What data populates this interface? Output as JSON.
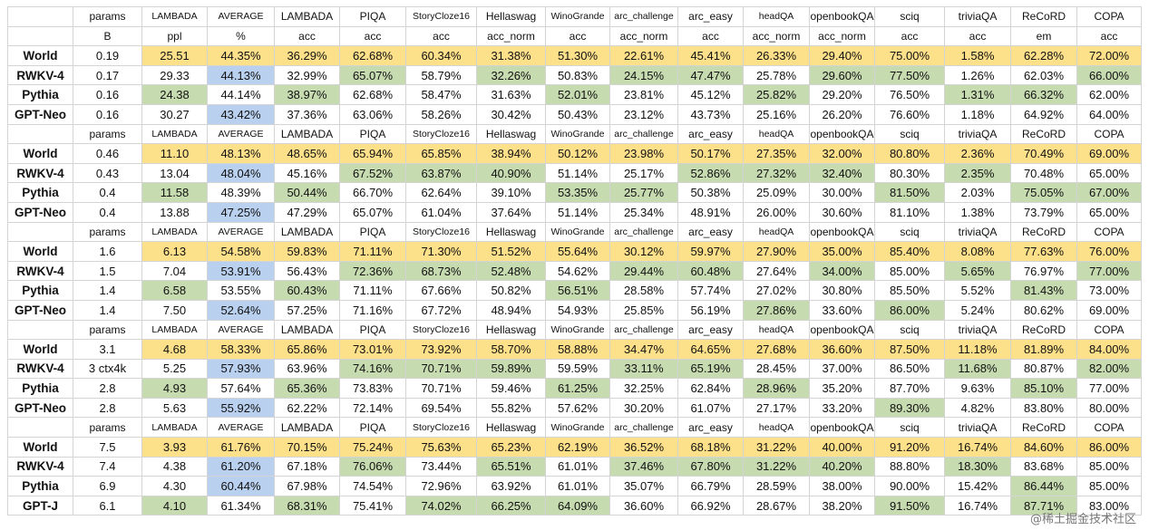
{
  "watermark": "@稀土掘金技术社区",
  "colors": {
    "yellow": "#fde08a",
    "green": "#c7dbb0",
    "blue": "#b9d0ef"
  },
  "header_row": [
    "params",
    "LAMBADA",
    "AVERAGE",
    "LAMBADA",
    "PIQA",
    "StoryCloze16",
    "Hellaswag",
    "WinoGrande",
    "arc_challenge",
    "arc_easy",
    "headQA",
    "openbookQA",
    "sciq",
    "triviaQA",
    "ReCoRD",
    "COPA"
  ],
  "unit_row": [
    "B",
    "ppl",
    "%",
    "acc",
    "acc",
    "acc",
    "acc_norm",
    "acc",
    "acc_norm",
    "acc",
    "acc_norm",
    "acc_norm",
    "acc",
    "acc",
    "em",
    "acc"
  ],
  "groups": [
    {
      "rows": [
        {
          "name": "World",
          "cells": [
            "0.19",
            "25.51",
            "44.35%",
            "36.29%",
            "62.68%",
            "60.34%",
            "31.38%",
            "51.30%",
            "22.61%",
            "45.41%",
            "26.33%",
            "29.40%",
            "75.00%",
            "1.58%",
            "62.28%",
            "72.00%"
          ],
          "hl": [
            "",
            "y",
            "y",
            "y",
            "y",
            "y",
            "y",
            "y",
            "y",
            "y",
            "y",
            "y",
            "y",
            "y",
            "y",
            "y"
          ]
        },
        {
          "name": "RWKV-4",
          "cells": [
            "0.17",
            "29.33",
            "44.13%",
            "32.99%",
            "65.07%",
            "58.79%",
            "32.26%",
            "50.83%",
            "24.15%",
            "47.47%",
            "25.78%",
            "29.60%",
            "77.50%",
            "1.26%",
            "62.03%",
            "66.00%"
          ],
          "hl": [
            "",
            "",
            "b",
            "",
            "g",
            "",
            "g",
            "",
            "g",
            "g",
            "",
            "g",
            "g",
            "",
            "",
            "g"
          ]
        },
        {
          "name": "Pythia",
          "cells": [
            "0.16",
            "24.38",
            "44.14%",
            "38.97%",
            "62.68%",
            "58.47%",
            "31.63%",
            "52.01%",
            "23.81%",
            "45.12%",
            "25.82%",
            "29.20%",
            "76.50%",
            "1.31%",
            "66.32%",
            "62.00%"
          ],
          "hl": [
            "",
            "g",
            "",
            "g",
            "",
            "",
            "",
            "g",
            "",
            "",
            "g",
            "",
            "",
            "g",
            "g",
            ""
          ]
        },
        {
          "name": "GPT-Neo",
          "cells": [
            "0.16",
            "30.27",
            "43.42%",
            "37.36%",
            "63.06%",
            "58.26%",
            "30.42%",
            "50.43%",
            "23.12%",
            "43.73%",
            "25.16%",
            "26.20%",
            "76.60%",
            "1.18%",
            "64.92%",
            "64.00%"
          ],
          "hl": [
            "",
            "",
            "b",
            "",
            "",
            "",
            "",
            "",
            "",
            "",
            "",
            "",
            "",
            "",
            "",
            ""
          ]
        }
      ]
    },
    {
      "rows": [
        {
          "name": "World",
          "cells": [
            "0.46",
            "11.10",
            "48.13%",
            "48.65%",
            "65.94%",
            "65.85%",
            "38.94%",
            "50.12%",
            "23.98%",
            "50.17%",
            "27.35%",
            "32.00%",
            "80.80%",
            "2.36%",
            "70.49%",
            "69.00%"
          ],
          "hl": [
            "",
            "y",
            "y",
            "y",
            "y",
            "y",
            "y",
            "y",
            "y",
            "y",
            "y",
            "y",
            "y",
            "y",
            "y",
            "y"
          ]
        },
        {
          "name": "RWKV-4",
          "cells": [
            "0.43",
            "13.04",
            "48.04%",
            "45.16%",
            "67.52%",
            "63.87%",
            "40.90%",
            "51.14%",
            "25.17%",
            "52.86%",
            "27.32%",
            "32.40%",
            "80.30%",
            "2.35%",
            "70.48%",
            "65.00%"
          ],
          "hl": [
            "",
            "",
            "b",
            "",
            "g",
            "g",
            "g",
            "",
            "",
            "g",
            "g",
            "g",
            "",
            "g",
            "",
            ""
          ]
        },
        {
          "name": "Pythia",
          "cells": [
            "0.4",
            "11.58",
            "48.39%",
            "50.44%",
            "66.70%",
            "62.64%",
            "39.10%",
            "53.35%",
            "25.77%",
            "50.38%",
            "25.09%",
            "30.00%",
            "81.50%",
            "2.03%",
            "75.05%",
            "67.00%"
          ],
          "hl": [
            "",
            "g",
            "",
            "g",
            "",
            "",
            "",
            "g",
            "g",
            "",
            "",
            "",
            "g",
            "",
            "g",
            "g"
          ]
        },
        {
          "name": "GPT-Neo",
          "cells": [
            "0.4",
            "13.88",
            "47.25%",
            "47.29%",
            "65.07%",
            "61.04%",
            "37.64%",
            "51.14%",
            "25.34%",
            "48.91%",
            "26.00%",
            "30.60%",
            "81.10%",
            "1.38%",
            "73.79%",
            "65.00%"
          ],
          "hl": [
            "",
            "",
            "b",
            "",
            "",
            "",
            "",
            "",
            "",
            "",
            "",
            "",
            "",
            "",
            "",
            ""
          ]
        }
      ]
    },
    {
      "rows": [
        {
          "name": "World",
          "cells": [
            "1.6",
            "6.13",
            "54.58%",
            "59.83%",
            "71.11%",
            "71.30%",
            "51.52%",
            "55.64%",
            "30.12%",
            "59.97%",
            "27.90%",
            "35.00%",
            "85.40%",
            "8.08%",
            "77.63%",
            "76.00%"
          ],
          "hl": [
            "",
            "y",
            "y",
            "y",
            "y",
            "y",
            "y",
            "y",
            "y",
            "y",
            "y",
            "y",
            "y",
            "y",
            "y",
            "y"
          ]
        },
        {
          "name": "RWKV-4",
          "cells": [
            "1.5",
            "7.04",
            "53.91%",
            "56.43%",
            "72.36%",
            "68.73%",
            "52.48%",
            "54.62%",
            "29.44%",
            "60.48%",
            "27.64%",
            "34.00%",
            "85.00%",
            "5.65%",
            "76.97%",
            "77.00%"
          ],
          "hl": [
            "",
            "",
            "b",
            "",
            "g",
            "g",
            "g",
            "",
            "g",
            "g",
            "",
            "g",
            "",
            "g",
            "",
            "g"
          ]
        },
        {
          "name": "Pythia",
          "cells": [
            "1.4",
            "6.58",
            "53.55%",
            "60.43%",
            "71.11%",
            "67.66%",
            "50.82%",
            "56.51%",
            "28.58%",
            "57.74%",
            "27.02%",
            "30.80%",
            "85.50%",
            "5.52%",
            "81.43%",
            "73.00%"
          ],
          "hl": [
            "",
            "g",
            "",
            "g",
            "",
            "",
            "",
            "g",
            "",
            "",
            "",
            "",
            "",
            "",
            "g",
            ""
          ]
        },
        {
          "name": "GPT-Neo",
          "cells": [
            "1.4",
            "7.50",
            "52.64%",
            "57.25%",
            "71.16%",
            "67.72%",
            "48.94%",
            "54.93%",
            "25.85%",
            "56.19%",
            "27.86%",
            "33.60%",
            "86.00%",
            "5.24%",
            "80.62%",
            "69.00%"
          ],
          "hl": [
            "",
            "",
            "b",
            "",
            "",
            "",
            "",
            "",
            "",
            "",
            "g",
            "",
            "g",
            "",
            "",
            ""
          ]
        }
      ]
    },
    {
      "rows": [
        {
          "name": "World",
          "cells": [
            "3.1",
            "4.68",
            "58.33%",
            "65.86%",
            "73.01%",
            "73.92%",
            "58.70%",
            "58.88%",
            "34.47%",
            "64.65%",
            "27.68%",
            "36.60%",
            "87.50%",
            "11.18%",
            "81.89%",
            "84.00%"
          ],
          "hl": [
            "",
            "y",
            "y",
            "y",
            "y",
            "y",
            "y",
            "y",
            "y",
            "y",
            "y",
            "y",
            "y",
            "y",
            "y",
            "y"
          ]
        },
        {
          "name": "RWKV-4",
          "cells": [
            "3 ctx4k",
            "5.25",
            "57.93%",
            "63.96%",
            "74.16%",
            "70.71%",
            "59.89%",
            "59.59%",
            "33.11%",
            "65.19%",
            "28.45%",
            "37.00%",
            "86.50%",
            "11.68%",
            "80.87%",
            "82.00%"
          ],
          "hl": [
            "",
            "",
            "b",
            "",
            "g",
            "g",
            "g",
            "",
            "g",
            "g",
            "",
            "",
            "",
            "g",
            "",
            "g"
          ]
        },
        {
          "name": "Pythia",
          "cells": [
            "2.8",
            "4.93",
            "57.64%",
            "65.36%",
            "73.83%",
            "70.71%",
            "59.46%",
            "61.25%",
            "32.25%",
            "62.84%",
            "28.96%",
            "35.20%",
            "87.70%",
            "9.63%",
            "85.10%",
            "77.00%"
          ],
          "hl": [
            "",
            "g",
            "",
            "g",
            "",
            "",
            "",
            "g",
            "",
            "",
            "g",
            "",
            "",
            "",
            "g",
            ""
          ]
        },
        {
          "name": "GPT-Neo",
          "cells": [
            "2.8",
            "5.63",
            "55.92%",
            "62.22%",
            "72.14%",
            "69.54%",
            "55.82%",
            "57.62%",
            "30.20%",
            "61.07%",
            "27.17%",
            "33.20%",
            "89.30%",
            "4.82%",
            "83.80%",
            "80.00%"
          ],
          "hl": [
            "",
            "",
            "b",
            "",
            "",
            "",
            "",
            "",
            "",
            "",
            "",
            "",
            "g",
            "",
            "",
            ""
          ]
        }
      ]
    },
    {
      "rows": [
        {
          "name": "World",
          "cells": [
            "7.5",
            "3.93",
            "61.76%",
            "70.15%",
            "75.24%",
            "75.63%",
            "65.23%",
            "62.19%",
            "36.52%",
            "68.18%",
            "31.22%",
            "40.00%",
            "91.20%",
            "16.74%",
            "84.60%",
            "86.00%"
          ],
          "hl": [
            "",
            "y",
            "y",
            "y",
            "y",
            "y",
            "y",
            "y",
            "y",
            "y",
            "y",
            "y",
            "y",
            "y",
            "y",
            "y"
          ]
        },
        {
          "name": "RWKV-4",
          "cells": [
            "7.4",
            "4.38",
            "61.20%",
            "67.18%",
            "76.06%",
            "73.44%",
            "65.51%",
            "61.01%",
            "37.46%",
            "67.80%",
            "31.22%",
            "40.20%",
            "88.80%",
            "18.30%",
            "83.68%",
            "85.00%"
          ],
          "hl": [
            "",
            "",
            "b",
            "",
            "g",
            "",
            "g",
            "",
            "g",
            "g",
            "g",
            "g",
            "",
            "g",
            "",
            ""
          ]
        },
        {
          "name": "Pythia",
          "cells": [
            "6.9",
            "4.30",
            "60.44%",
            "67.98%",
            "74.54%",
            "72.96%",
            "63.92%",
            "61.01%",
            "35.07%",
            "66.79%",
            "28.59%",
            "38.00%",
            "90.00%",
            "15.42%",
            "86.44%",
            "85.00%"
          ],
          "hl": [
            "",
            "",
            "b",
            "",
            "",
            "",
            "",
            "",
            "",
            "",
            "",
            "",
            "",
            "",
            "g",
            ""
          ]
        },
        {
          "name": "GPT-J",
          "cells": [
            "6.1",
            "4.10",
            "61.34%",
            "68.31%",
            "75.41%",
            "74.02%",
            "66.25%",
            "64.09%",
            "36.60%",
            "66.92%",
            "28.67%",
            "38.20%",
            "91.50%",
            "16.74%",
            "87.71%",
            "83.00%"
          ],
          "hl": [
            "",
            "g",
            "",
            "g",
            "",
            "g",
            "g",
            "g",
            "",
            "",
            "",
            "",
            "g",
            "",
            "g",
            ""
          ]
        }
      ]
    }
  ]
}
